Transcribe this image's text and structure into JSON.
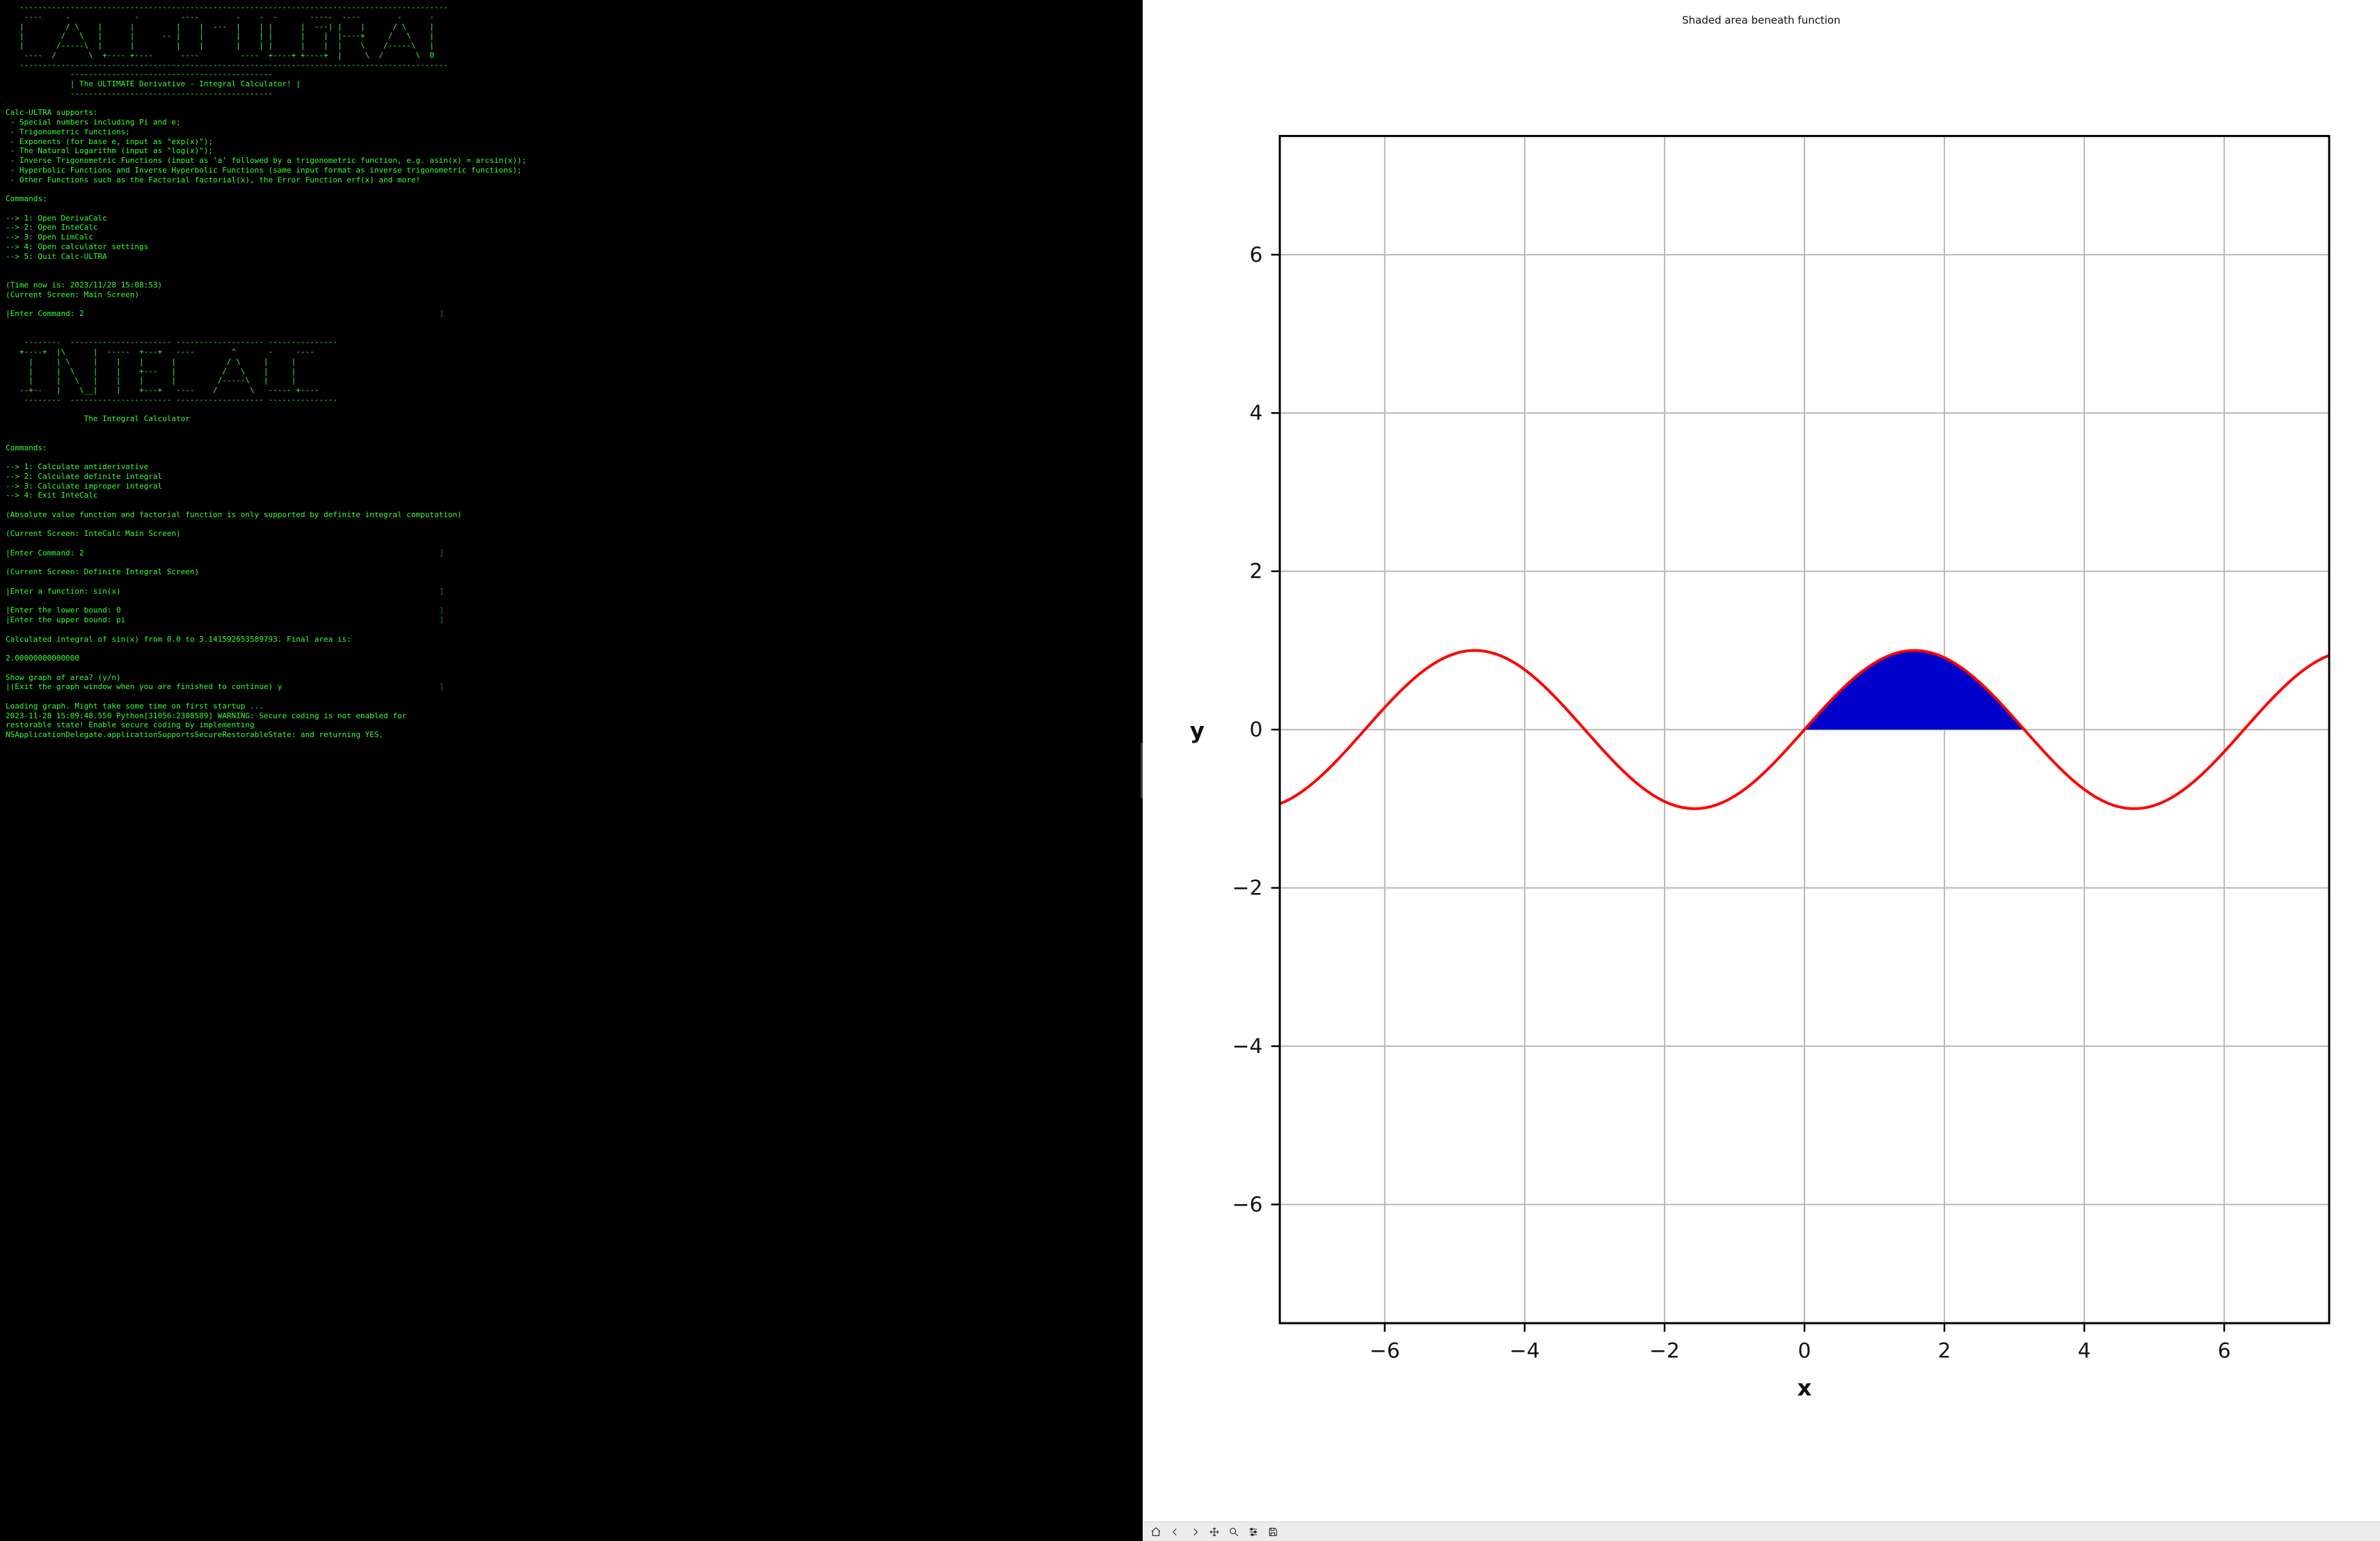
{
  "terminal": {
    "ascii_banner_main": "   ---------------------------------------------------------------------------------------------\n    ----     -              -         ----        -    -  -       -----  ----        -      -\n   |         / \\    |      |         |    |  ---  |    | |      |  ---| |    |      / \\     |\n   |        /   \\   |      |      -- |    |       |    | |      |    |  |----+     /   \\    |\n   |       /-----\\  |      |         |    |       |    | |      |    |  |    \\    /-----\\   |\n    ----  /       \\  +---- +----      ----         ----  +----+ +----+  |     \\  /       \\  0\n   ---------------------------------------------------------------------------------------------",
    "subtitle_box_top": "              --------------------------------------------",
    "subtitle_box_mid": "              | The ULTIMATE Derivative - Integral Calculator! |",
    "subtitle_box_bot": "              --------------------------------------------",
    "supports_heading": "Calc-ULTRA supports:",
    "supports": [
      " - Special numbers including Pi and e;",
      " - Trigonometric functions;",
      " - Exponents (for base e, input as \"exp(x)\");",
      " - The Natural Logarithm (input as \"log(x)\");",
      " - Inverse Trigonometric Functions (input as 'a' followed by a trigonometric function, e.g. asin(x) = arcsin(x));",
      " - Hyperbolic Functions and Inverse Hyperbolic Functions (same input format as inverse trigonometric functions);",
      " - Other Functions such as the Factorial factorial(x), the Error Function erf(x) and more!"
    ],
    "commands_heading": "Commands:",
    "main_commands": [
      "--> 1: Open DerivaCalc",
      "--> 2: Open InteCalc",
      "--> 3: Open LimCalc",
      "--> 4: Open calculator settings",
      "--> 5: Quit Calc-ULTRA"
    ],
    "time_line": "(Time now is: 2023/11/28 15:08:53)",
    "screen_line_main": "(Current Screen: Main Screen)",
    "prompt1_label": "|Enter Command: ",
    "prompt1_value": "2",
    "ascii_banner_intecalc": "    --------  ---------------------- ------------------- ---------------\n   +----+  |\\      |  -----  +---+   ----        ^       -     ----\n     |     | \\     |    |    |      |           / \\     |     |\n     |     |  \\    |    |    +---   |          /   \\    |     |\n     |     |   \\   |    |    |      |         /-----\\   |     |\n   --+--   |    \\__|    |    +---+   ----    /       \\   ----- +----\n    --------  ---------------------- ------------------- ---------------",
    "intecalc_title": "                 The Integral Calculator",
    "inte_commands_heading": "Commands:",
    "inte_commands": [
      "--> 1: Calculate antiderivative",
      "--> 2: Calculate definite integral",
      "--> 3: Calculate improper integral",
      "--> 4: Exit InteCalc"
    ],
    "inte_note": "(Absolute value function and factorial function is only supported by definite integral computation)",
    "screen_line_inte": "(Current Screen: InteCalc Main Screen)",
    "prompt2_label": "|Enter Command: ",
    "prompt2_value": "2",
    "screen_line_def": "(Current Screen: Definite Integral Screen)",
    "prompt_fn_label": "|Enter a function: ",
    "prompt_fn_value": "sin(x)",
    "prompt_low_label": "|Enter the lower bound: ",
    "prompt_low_value": "0",
    "prompt_up_label": "|Enter the upper bound: ",
    "prompt_up_value": "pi",
    "result_header": "Calculated integral of sin(x) from 0.0 to 3.141592653589793. Final area is:",
    "result_value": "2.00000000000000",
    "prompt_graph_q": "Show graph of area? (y/n)",
    "prompt_graph_hint_label": "|(Exit the graph window when you are finished to continue) ",
    "prompt_graph_value": "y",
    "loading_line": "Loading graph. Might take some time on first startup ...",
    "warning_line": "2023-11-28 15:09:48.550 Python[31056:2308589] WARNING: Secure coding is not enabled for restorable state! Enable secure coding by implementing NSApplicationDelegate.applicationSupportsSecureRestorableState: and returning YES."
  },
  "chart": {
    "title": "Shaded area beneath function",
    "xlabel": "x",
    "ylabel": "y",
    "xlim": [
      -7.5,
      7.5
    ],
    "ylim": [
      -7.5,
      7.5
    ],
    "xticks": [
      -6,
      -4,
      -2,
      0,
      2,
      4,
      6
    ],
    "yticks": [
      -6,
      -4,
      -2,
      0,
      2,
      4,
      6
    ],
    "xtick_labels": [
      "−6",
      "−4",
      "−2",
      "0",
      "2",
      "4",
      "6"
    ],
    "ytick_labels": [
      "−6",
      "−4",
      "−2",
      "0",
      "2",
      "4",
      "6"
    ],
    "line_color": "#ff0000",
    "fill_color": "#0000cd",
    "grid_color": "#b8b8b8",
    "background_color": "#ffffff",
    "axis_border_color": "#000000",
    "series": {
      "type": "line",
      "function": "sin(x)",
      "x_start": -7.5,
      "x_end": 7.5,
      "samples": 180,
      "line_width": 1.6
    },
    "fill": {
      "x_start": 0.0,
      "x_end": 3.141592653589793
    },
    "label_fontsize_pt": 13,
    "tick_fontsize_pt": 12,
    "title_fontsize_pt": 15
  },
  "toolbar": {
    "buttons": [
      "home",
      "back",
      "forward",
      "pan",
      "zoom",
      "configure",
      "save"
    ]
  }
}
